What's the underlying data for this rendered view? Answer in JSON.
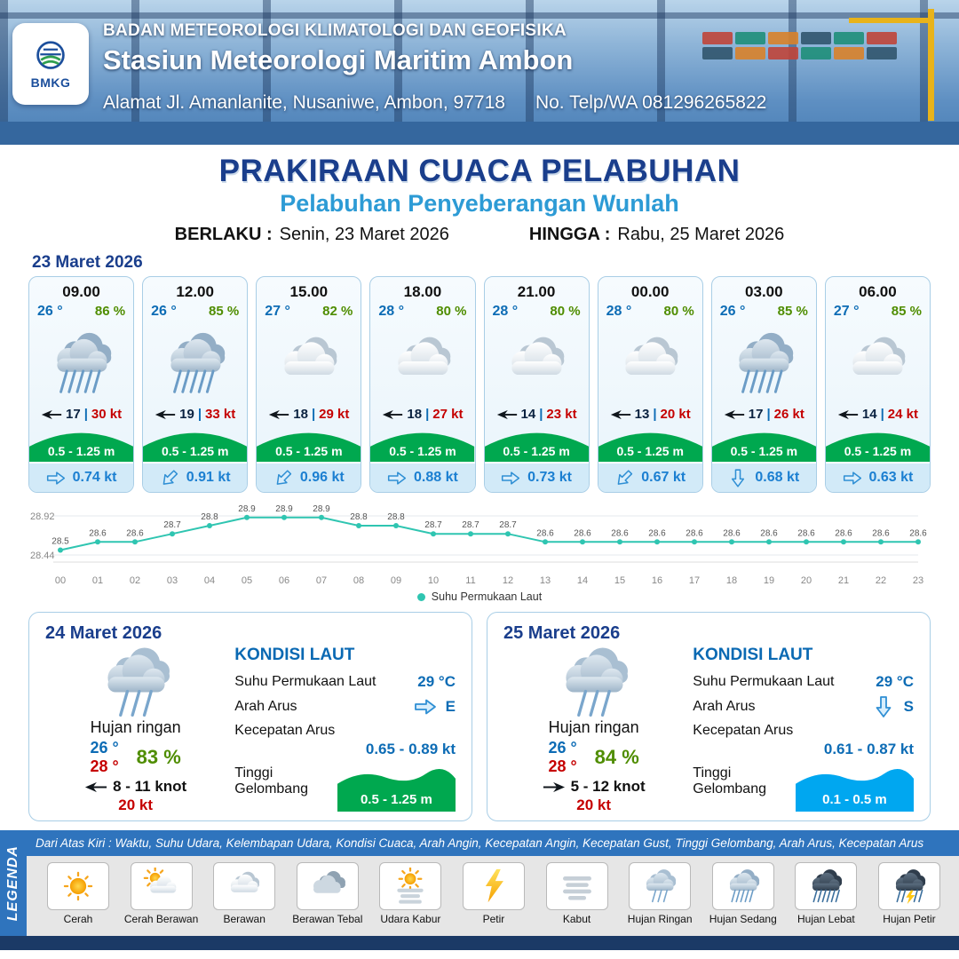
{
  "header": {
    "agency": "BADAN METEOROLOGI KLIMATOLOGI DAN GEOFISIKA",
    "station": "Stasiun Meteorologi Maritim Ambon",
    "address": "Alamat Jl. Amanlanite, Nusaniwe, Ambon, 97718",
    "phone": "No. Telp/WA  081296265822",
    "logo_text": "BMKG"
  },
  "title": {
    "main": "PRAKIRAAN CUACA PELABUHAN",
    "subtitle": "Pelabuhan Penyeberangan Wunlah",
    "valid_label": "BERLAKU :",
    "valid_value": "Senin, 23 Maret 2026",
    "until_label": "HINGGA :",
    "until_value": "Rabu, 25 Maret 2026"
  },
  "forecast": {
    "date": "23 Maret 2026",
    "sep": "|",
    "cards": [
      {
        "time": "09.00",
        "temp": "26 °",
        "humidity": "86 %",
        "icon": "hujan-sedang",
        "wind": "17",
        "gust": "30 kt",
        "wave": "0.5 - 1.25 m",
        "current": "0.74 kt",
        "current_dir": 0
      },
      {
        "time": "12.00",
        "temp": "26 °",
        "humidity": "85 %",
        "icon": "hujan-sedang",
        "wind": "19",
        "gust": "33 kt",
        "wave": "0.5 - 1.25 m",
        "current": "0.91 kt",
        "current_dir": 135
      },
      {
        "time": "15.00",
        "temp": "27 °",
        "humidity": "82 %",
        "icon": "berawan",
        "wind": "18",
        "gust": "29 kt",
        "wave": "0.5 - 1.25 m",
        "current": "0.96 kt",
        "current_dir": 135
      },
      {
        "time": "18.00",
        "temp": "28 °",
        "humidity": "80 %",
        "icon": "berawan",
        "wind": "18",
        "gust": "27 kt",
        "wave": "0.5 - 1.25 m",
        "current": "0.88 kt",
        "current_dir": 0
      },
      {
        "time": "21.00",
        "temp": "28 °",
        "humidity": "80 %",
        "icon": "berawan",
        "wind": "14",
        "gust": "23 kt",
        "wave": "0.5 - 1.25 m",
        "current": "0.73 kt",
        "current_dir": 0
      },
      {
        "time": "00.00",
        "temp": "28 °",
        "humidity": "80 %",
        "icon": "berawan",
        "wind": "13",
        "gust": "20 kt",
        "wave": "0.5 - 1.25 m",
        "current": "0.67 kt",
        "current_dir": 135
      },
      {
        "time": "03.00",
        "temp": "26 °",
        "humidity": "85 %",
        "icon": "hujan-sedang",
        "wind": "17",
        "gust": "26 kt",
        "wave": "0.5 - 1.25 m",
        "current": "0.68 kt",
        "current_dir": 90
      },
      {
        "time": "06.00",
        "temp": "27 °",
        "humidity": "85 %",
        "icon": "berawan",
        "wind": "14",
        "gust": "24 kt",
        "wave": "0.5 - 1.25 m",
        "current": "0.63 kt",
        "current_dir": 0
      }
    ]
  },
  "chart_data": {
    "type": "line",
    "title": "",
    "legend": "Suhu Permukaan Laut",
    "x": [
      "00",
      "01",
      "02",
      "03",
      "04",
      "05",
      "06",
      "07",
      "08",
      "09",
      "10",
      "11",
      "12",
      "13",
      "14",
      "15",
      "16",
      "17",
      "18",
      "19",
      "20",
      "21",
      "22",
      "23"
    ],
    "values": [
      28.5,
      28.6,
      28.6,
      28.7,
      28.8,
      28.9,
      28.9,
      28.9,
      28.8,
      28.8,
      28.7,
      28.7,
      28.7,
      28.6,
      28.6,
      28.6,
      28.6,
      28.6,
      28.6,
      28.6,
      28.6,
      28.6,
      28.6,
      28.6
    ],
    "ylim": [
      28.44,
      28.92
    ],
    "y_ticks": [
      "28.92",
      "28.44"
    ],
    "line_color": "#2fc5b1",
    "grid": false,
    "legend_position": "bottom"
  },
  "days": [
    {
      "date": "24 Maret 2026",
      "icon": "hujan-ringan",
      "condition": "Hujan ringan",
      "temp_min": "26 °",
      "temp_max": "28 °",
      "humidity": "83 %",
      "wind_dir": 0,
      "wind": "8 - 11 knot",
      "gust": "20 kt",
      "sea_title": "KONDISI LAUT",
      "sst_label": "Suhu Permukaan Laut",
      "sst_value": "29 °C",
      "current_dir_label": "Arah Arus",
      "current_dir_deg": 0,
      "current_dir_value": "E",
      "current_speed_label": "Kecepatan Arus",
      "current_speed_value": "0.65 - 0.89 kt",
      "wave_label": "Tinggi Gelombang",
      "wave_value": "0.5 - 1.25 m",
      "wave_color": "#00a84f"
    },
    {
      "date": "25 Maret 2026",
      "icon": "hujan-ringan",
      "condition": "Hujan ringan",
      "temp_min": "26 °",
      "temp_max": "28 °",
      "humidity": "84 %",
      "wind_dir": 180,
      "wind": "5 - 12 knot",
      "gust": "20 kt",
      "sea_title": "KONDISI LAUT",
      "sst_label": "Suhu Permukaan Laut",
      "sst_value": "29 °C",
      "current_dir_label": "Arah Arus",
      "current_dir_deg": 90,
      "current_dir_value": "S",
      "current_speed_label": "Kecepatan Arus",
      "current_speed_value": "0.61 - 0.87 kt",
      "wave_label": "Tinggi Gelombang",
      "wave_value": "0.1 - 0.5 m",
      "wave_color": "#00a7f0"
    }
  ],
  "legend": {
    "title": "LEGENDA",
    "note": "Dari Atas Kiri : Waktu, Suhu Udara, Kelembapan Udara, Kondisi Cuaca, Arah Angin, Kecepatan Angin, Kecepatan Gust, Tinggi Gelombang, Arah Arus, Kecepatan Arus",
    "items": [
      {
        "label": "Cerah",
        "icon": "cerah"
      },
      {
        "label": "Cerah Berawan",
        "icon": "cerah-berawan"
      },
      {
        "label": "Berawan",
        "icon": "berawan"
      },
      {
        "label": "Berawan Tebal",
        "icon": "berawan-tebal"
      },
      {
        "label": "Udara Kabur",
        "icon": "udara-kabur"
      },
      {
        "label": "Petir",
        "icon": "petir"
      },
      {
        "label": "Kabut",
        "icon": "kabut"
      },
      {
        "label": "Hujan Ringan",
        "icon": "hujan-ringan"
      },
      {
        "label": "Hujan Sedang",
        "icon": "hujan-sedang"
      },
      {
        "label": "Hujan Lebat",
        "icon": "hujan-lebat"
      },
      {
        "label": "Hujan Petir",
        "icon": "hujan-petir"
      }
    ]
  },
  "colors": {
    "navy": "#1a3e8c",
    "subtitle-blue": "#2d9bd5",
    "temp-blue": "#0d6cb5",
    "hum-green": "#4f8d00",
    "alert-red": "#c50000",
    "wave-green": "#00a84f",
    "current-blue": "#1b7fd1",
    "footer-blue": "#d2eaf8",
    "card-border": "#a9cee6",
    "chart-teal": "#2fc5b1",
    "legend-blue": "#2f74bd",
    "sea-blue": "#0a69b3",
    "header-strip": "#1b3a66"
  }
}
